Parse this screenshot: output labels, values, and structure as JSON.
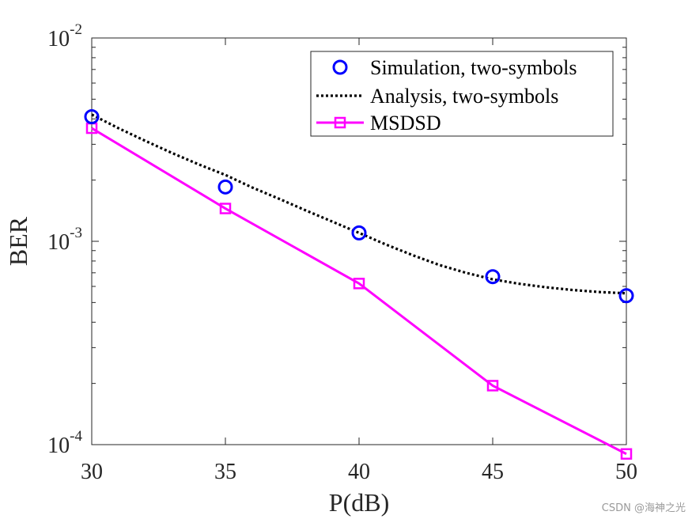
{
  "chart_data": {
    "type": "line",
    "xlabel": "P(dB)",
    "ylabel": "BER",
    "yscale": "log",
    "xlim": [
      30,
      50
    ],
    "ylim": [
      0.0001,
      0.01
    ],
    "x_ticks": [
      30,
      35,
      40,
      45,
      50
    ],
    "x_tick_labels": [
      "30",
      "35",
      "40",
      "45",
      "50"
    ],
    "y_ticks": [
      {
        "value": 0.01,
        "base": "10",
        "exp": "-2"
      },
      {
        "value": 0.001,
        "base": "10",
        "exp": "-3"
      },
      {
        "value": 0.0001,
        "base": "10",
        "exp": "-4"
      }
    ],
    "grid": false,
    "legend_position": "top-right",
    "series": [
      {
        "name": "Simulation, two-symbols",
        "style": "markers",
        "marker": "circle",
        "color": "#0000ff",
        "x": [
          30,
          35,
          40,
          45,
          50
        ],
        "values": [
          0.0041,
          0.00185,
          0.0011,
          0.00067,
          0.00054
        ]
      },
      {
        "name": "Analysis, two-symbols",
        "style": "dotted",
        "marker": "none",
        "color": "#000000",
        "x": [
          30,
          31,
          32,
          33,
          34,
          35,
          36,
          37,
          38,
          39,
          40,
          41,
          42,
          43,
          44,
          45,
          46,
          47,
          48,
          49,
          50
        ],
        "values": [
          0.0042,
          0.0036,
          0.00312,
          0.00272,
          0.00239,
          0.00212,
          0.00184,
          0.00162,
          0.00142,
          0.00125,
          0.0011,
          0.000965,
          0.000855,
          0.000765,
          0.0007,
          0.00065,
          0.000618,
          0.000594,
          0.000576,
          0.000563,
          0.000555
        ]
      },
      {
        "name": "MSDSD",
        "style": "solid",
        "marker": "square",
        "color": "#ff00ff",
        "x": [
          30,
          35,
          40,
          45,
          50
        ],
        "values": [
          0.0036,
          0.00145,
          0.00062,
          0.000195,
          9e-05
        ]
      }
    ]
  },
  "watermark": "CSDN @海神之光"
}
